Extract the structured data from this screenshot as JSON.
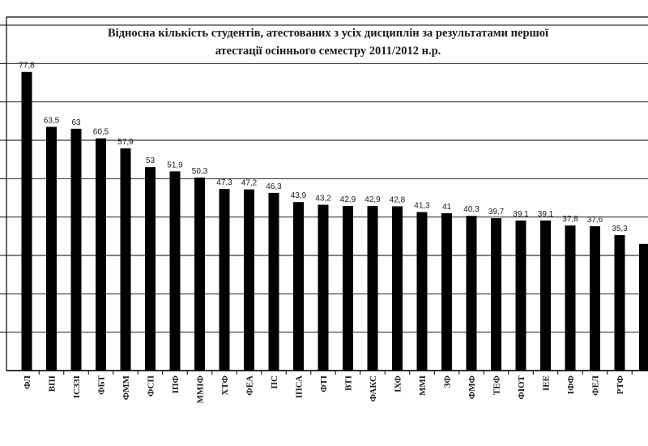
{
  "chart_data": {
    "type": "bar",
    "title_line1": "Відносна кількість студентів, атестованих з усіх дисциплін за результатами першої",
    "title_line2": "атестації осіннього семестру 2011/2012 н.р.",
    "xlabel": "",
    "ylabel": "",
    "ylim": [
      0,
      90
    ],
    "grid": true,
    "legend": "none",
    "colors": {
      "bar": "#000000",
      "grid": "#000000",
      "text": "#1a1a1a"
    },
    "categories": [
      "ФЛ",
      "ВПІ",
      "ІСЗЗІ",
      "ФБТ",
      "ФММ",
      "ФСП",
      "ІПФ",
      "ММІФ",
      "ХТФ",
      "ФЕА",
      "ПС",
      "ІПСА",
      "ФТІ",
      "ВТІ",
      "ФАКС",
      "ІХФ",
      "ММІ",
      "ЗФ",
      "ФМФ",
      "ТЕФ",
      "ФІОТ",
      "ІЕЕ",
      "ІФФ",
      "ФЕЛ",
      "РТФ",
      ""
    ],
    "values": [
      77.8,
      63.5,
      63,
      60.5,
      57.9,
      53,
      51.9,
      50.3,
      47.3,
      47.2,
      46.3,
      43.9,
      43.2,
      42.9,
      42.9,
      42.8,
      41.3,
      41,
      40.3,
      39.7,
      39.1,
      39.1,
      37.8,
      37.6,
      35.3,
      33
    ],
    "data_labels": [
      "77,8",
      "63,5",
      "63",
      "60,5",
      "57,9",
      "53",
      "51,9",
      "50,3",
      "47,3",
      "47,2",
      "46,3",
      "43,9",
      "43,2",
      "42,9",
      "42,9",
      "42,8",
      "41,3",
      "41",
      "40,3",
      "39,7",
      "39,1",
      "39,1",
      "37,8",
      "37,6",
      "35,3",
      ""
    ]
  }
}
